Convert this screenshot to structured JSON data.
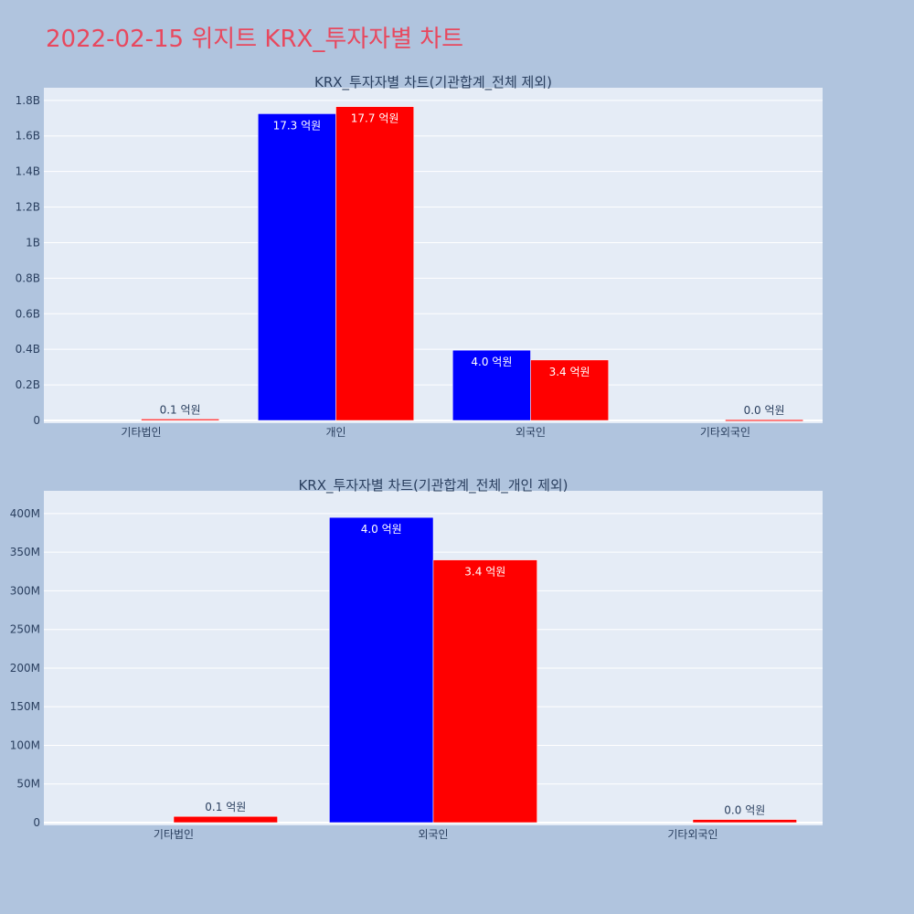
{
  "page": {
    "title": "2022-02-15 위지트 KRX_투자자별 차트",
    "background": "#b0c4de",
    "title_color": "#e8485e"
  },
  "chart_data": [
    {
      "type": "bar",
      "title": "KRX_투자자별 차트(기관합계_전체 제외)",
      "categories": [
        "기타법인",
        "개인",
        "외국인",
        "기타외국인"
      ],
      "ylim": [
        0,
        1830000000
      ],
      "yticks": [
        0,
        200000000,
        400000000,
        600000000,
        800000000,
        1000000000,
        1200000000,
        1400000000,
        1600000000,
        1800000000
      ],
      "ytick_labels": [
        "0",
        "0.2B",
        "0.4B",
        "0.6B",
        "0.8B",
        "1B",
        "1.2B",
        "1.4B",
        "1.6B",
        "1.8B"
      ],
      "grid": true,
      "plot_background": "#e5ecf6",
      "series": [
        {
          "color": "#0000ff",
          "values": [
            0,
            1725000000,
            395000000,
            0
          ],
          "labels": [
            "",
            "17.3 억원",
            "4.0 억원",
            ""
          ]
        },
        {
          "color": "#ff0000",
          "values": [
            8000000,
            1765000000,
            340000000,
            4000000
          ],
          "labels": [
            "0.1 억원",
            "17.7 억원",
            "3.4 억원",
            "0.0 억원"
          ]
        }
      ]
    },
    {
      "type": "bar",
      "title": "KRX_투자자별 차트(기관합계_전체_개인 제외)",
      "categories": [
        "기타법인",
        "외국인",
        "기타외국인"
      ],
      "ylim": [
        0,
        420000000
      ],
      "yticks": [
        0,
        50000000,
        100000000,
        150000000,
        200000000,
        250000000,
        300000000,
        350000000,
        400000000
      ],
      "ytick_labels": [
        "0",
        "50M",
        "100M",
        "150M",
        "200M",
        "250M",
        "300M",
        "350M",
        "400M"
      ],
      "grid": true,
      "plot_background": "#e5ecf6",
      "series": [
        {
          "color": "#0000ff",
          "values": [
            0,
            395000000,
            0
          ],
          "labels": [
            "",
            "4.0 억원",
            ""
          ]
        },
        {
          "color": "#ff0000",
          "values": [
            8000000,
            340000000,
            4000000
          ],
          "labels": [
            "0.1 억원",
            "3.4 억원",
            "0.0 억원"
          ]
        }
      ]
    }
  ]
}
